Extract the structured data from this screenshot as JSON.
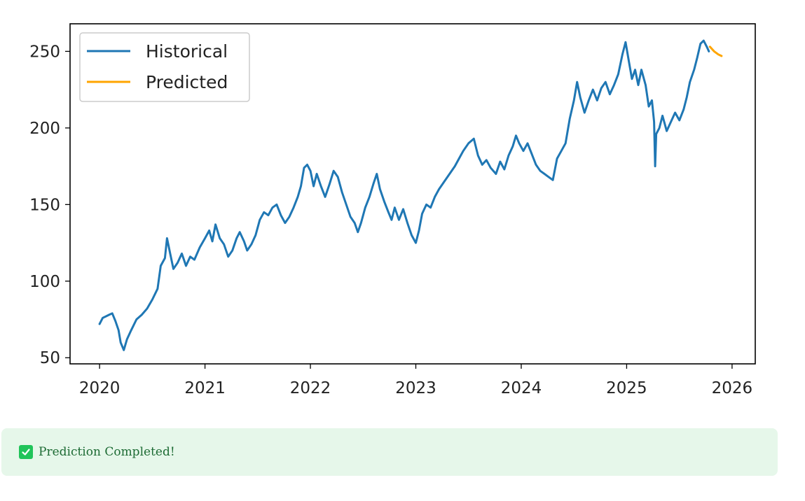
{
  "chart_data": {
    "type": "line",
    "title": "",
    "xlabel": "",
    "ylabel": "",
    "x_ticks": [
      "2020",
      "2021",
      "2022",
      "2023",
      "2024",
      "2025",
      "2026"
    ],
    "y_ticks": [
      "50",
      "100",
      "150",
      "200",
      "250"
    ],
    "xlim": [
      2019.72,
      2026.22
    ],
    "ylim": [
      46,
      268
    ],
    "legend_location": "upper-left",
    "grid": false,
    "series": [
      {
        "name": "Historical",
        "color": "#1f77b4",
        "points": [
          [
            2020.0,
            72
          ],
          [
            2020.03,
            76
          ],
          [
            2020.06,
            77
          ],
          [
            2020.09,
            78
          ],
          [
            2020.12,
            79
          ],
          [
            2020.15,
            74
          ],
          [
            2020.18,
            68
          ],
          [
            2020.2,
            60
          ],
          [
            2020.23,
            55
          ],
          [
            2020.26,
            62
          ],
          [
            2020.3,
            68
          ],
          [
            2020.35,
            75
          ],
          [
            2020.4,
            78
          ],
          [
            2020.45,
            82
          ],
          [
            2020.5,
            88
          ],
          [
            2020.55,
            95
          ],
          [
            2020.58,
            110
          ],
          [
            2020.62,
            115
          ],
          [
            2020.64,
            128
          ],
          [
            2020.67,
            118
          ],
          [
            2020.7,
            108
          ],
          [
            2020.74,
            112
          ],
          [
            2020.78,
            118
          ],
          [
            2020.82,
            110
          ],
          [
            2020.86,
            116
          ],
          [
            2020.9,
            114
          ],
          [
            2020.95,
            122
          ],
          [
            2021.0,
            128
          ],
          [
            2021.04,
            133
          ],
          [
            2021.07,
            126
          ],
          [
            2021.1,
            137
          ],
          [
            2021.14,
            128
          ],
          [
            2021.18,
            124
          ],
          [
            2021.22,
            116
          ],
          [
            2021.26,
            120
          ],
          [
            2021.3,
            128
          ],
          [
            2021.33,
            132
          ],
          [
            2021.37,
            126
          ],
          [
            2021.4,
            120
          ],
          [
            2021.44,
            124
          ],
          [
            2021.48,
            130
          ],
          [
            2021.52,
            140
          ],
          [
            2021.56,
            145
          ],
          [
            2021.6,
            143
          ],
          [
            2021.64,
            148
          ],
          [
            2021.68,
            150
          ],
          [
            2021.72,
            143
          ],
          [
            2021.76,
            138
          ],
          [
            2021.8,
            142
          ],
          [
            2021.84,
            148
          ],
          [
            2021.88,
            155
          ],
          [
            2021.91,
            162
          ],
          [
            2021.94,
            174
          ],
          [
            2021.97,
            176
          ],
          [
            2022.0,
            172
          ],
          [
            2022.03,
            162
          ],
          [
            2022.06,
            170
          ],
          [
            2022.1,
            162
          ],
          [
            2022.14,
            155
          ],
          [
            2022.18,
            163
          ],
          [
            2022.22,
            172
          ],
          [
            2022.26,
            168
          ],
          [
            2022.3,
            158
          ],
          [
            2022.34,
            150
          ],
          [
            2022.38,
            142
          ],
          [
            2022.42,
            138
          ],
          [
            2022.45,
            132
          ],
          [
            2022.48,
            138
          ],
          [
            2022.52,
            148
          ],
          [
            2022.56,
            155
          ],
          [
            2022.6,
            164
          ],
          [
            2022.63,
            170
          ],
          [
            2022.66,
            160
          ],
          [
            2022.7,
            152
          ],
          [
            2022.74,
            145
          ],
          [
            2022.77,
            140
          ],
          [
            2022.8,
            148
          ],
          [
            2022.84,
            140
          ],
          [
            2022.88,
            147
          ],
          [
            2022.92,
            138
          ],
          [
            2022.96,
            130
          ],
          [
            2023.0,
            125
          ],
          [
            2023.03,
            133
          ],
          [
            2023.06,
            144
          ],
          [
            2023.1,
            150
          ],
          [
            2023.14,
            148
          ],
          [
            2023.18,
            155
          ],
          [
            2023.22,
            160
          ],
          [
            2023.27,
            165
          ],
          [
            2023.32,
            170
          ],
          [
            2023.37,
            175
          ],
          [
            2023.41,
            180
          ],
          [
            2023.45,
            185
          ],
          [
            2023.5,
            190
          ],
          [
            2023.55,
            193
          ],
          [
            2023.59,
            182
          ],
          [
            2023.63,
            176
          ],
          [
            2023.67,
            179
          ],
          [
            2023.71,
            174
          ],
          [
            2023.76,
            170
          ],
          [
            2023.8,
            178
          ],
          [
            2023.84,
            173
          ],
          [
            2023.88,
            182
          ],
          [
            2023.92,
            188
          ],
          [
            2023.95,
            195
          ],
          [
            2023.98,
            190
          ],
          [
            2024.02,
            185
          ],
          [
            2024.06,
            190
          ],
          [
            2024.1,
            183
          ],
          [
            2024.14,
            176
          ],
          [
            2024.18,
            172
          ],
          [
            2024.22,
            170
          ],
          [
            2024.26,
            168
          ],
          [
            2024.3,
            166
          ],
          [
            2024.34,
            180
          ],
          [
            2024.38,
            185
          ],
          [
            2024.42,
            190
          ],
          [
            2024.46,
            206
          ],
          [
            2024.5,
            218
          ],
          [
            2024.53,
            230
          ],
          [
            2024.56,
            220
          ],
          [
            2024.6,
            210
          ],
          [
            2024.64,
            218
          ],
          [
            2024.68,
            225
          ],
          [
            2024.72,
            218
          ],
          [
            2024.76,
            226
          ],
          [
            2024.8,
            230
          ],
          [
            2024.84,
            222
          ],
          [
            2024.88,
            228
          ],
          [
            2024.92,
            235
          ],
          [
            2024.96,
            248
          ],
          [
            2024.99,
            256
          ],
          [
            2025.02,
            244
          ],
          [
            2025.05,
            232
          ],
          [
            2025.08,
            238
          ],
          [
            2025.11,
            228
          ],
          [
            2025.14,
            238
          ],
          [
            2025.18,
            228
          ],
          [
            2025.21,
            214
          ],
          [
            2025.24,
            218
          ],
          [
            2025.26,
            204
          ],
          [
            2025.27,
            175
          ],
          [
            2025.28,
            196
          ],
          [
            2025.31,
            200
          ],
          [
            2025.34,
            208
          ],
          [
            2025.38,
            198
          ],
          [
            2025.42,
            204
          ],
          [
            2025.46,
            210
          ],
          [
            2025.5,
            205
          ],
          [
            2025.54,
            212
          ],
          [
            2025.57,
            220
          ],
          [
            2025.6,
            230
          ],
          [
            2025.64,
            238
          ],
          [
            2025.67,
            246
          ],
          [
            2025.7,
            255
          ],
          [
            2025.73,
            257
          ],
          [
            2025.76,
            253
          ],
          [
            2025.78,
            250
          ]
        ]
      },
      {
        "name": "Predicted",
        "color": "#ffa500",
        "points": [
          [
            2025.79,
            253
          ],
          [
            2025.83,
            250
          ],
          [
            2025.87,
            248
          ],
          [
            2025.9,
            247
          ]
        ]
      }
    ]
  },
  "alert": {
    "text": "Prediction Completed!",
    "icon": "check-box-icon",
    "background": "#e6f7ea",
    "text_color": "#1d6b34",
    "icon_color": "#21c45a"
  }
}
